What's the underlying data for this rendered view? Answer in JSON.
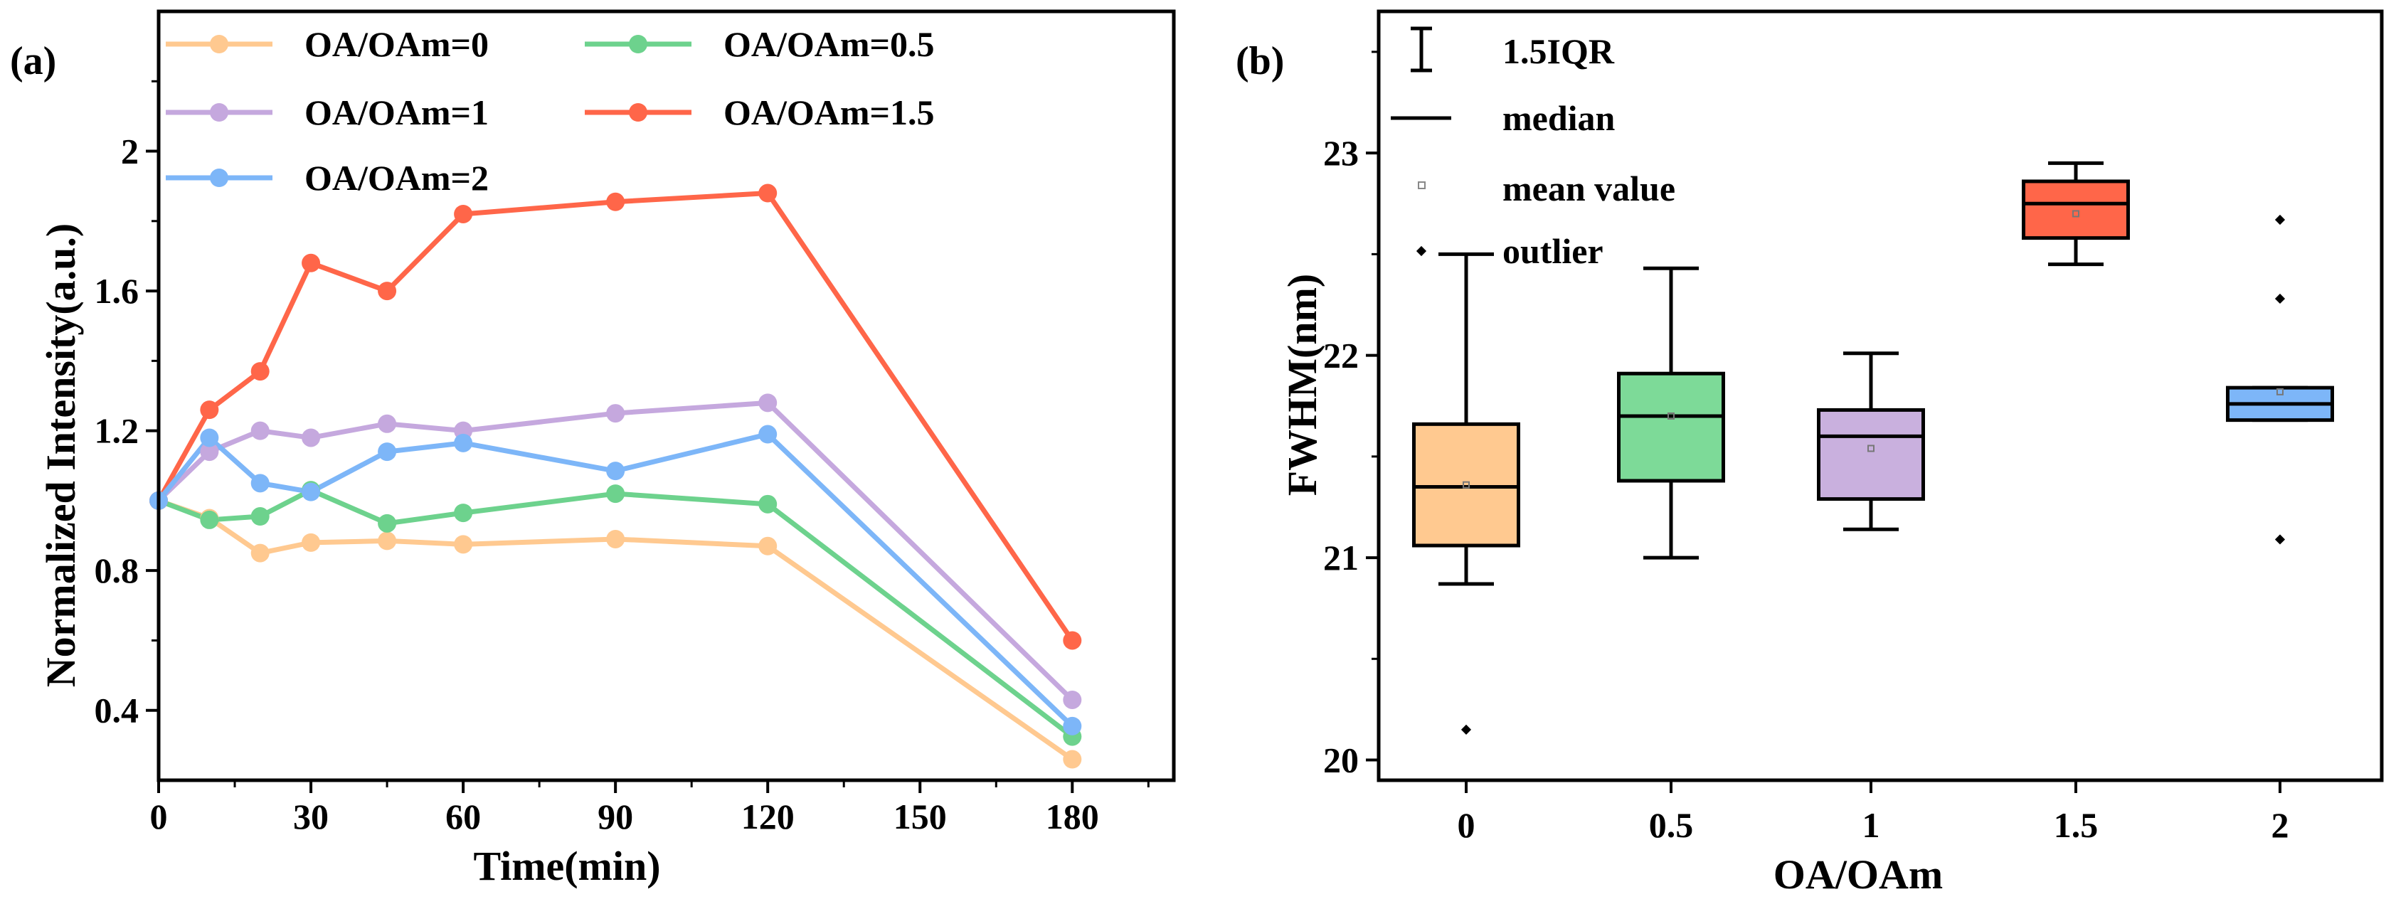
{
  "chart_data": [
    {
      "type": "line",
      "panel_label": "(a)",
      "xlabel": "Time(min)",
      "ylabel": "Normalized Intensity(a.u.)",
      "xlim": [
        0,
        200
      ],
      "ylim": [
        0.2,
        2.4
      ],
      "xticks": [
        0,
        30,
        60,
        90,
        120,
        150,
        180
      ],
      "yticks": [
        0.4,
        0.8,
        1.2,
        1.6,
        2.0
      ],
      "x": [
        0,
        10,
        20,
        30,
        45,
        60,
        90,
        120,
        180
      ],
      "series": [
        {
          "name": "OA/OAm=0",
          "color": "#FFC990",
          "values": [
            1.0,
            0.95,
            0.85,
            0.88,
            0.885,
            0.875,
            0.89,
            0.87,
            0.26
          ]
        },
        {
          "name": "OA/OAm=0.5",
          "color": "#6DD28D",
          "values": [
            1.0,
            0.945,
            0.955,
            1.03,
            0.935,
            0.965,
            1.02,
            0.99,
            0.325
          ]
        },
        {
          "name": "OA/OAm=1",
          "color": "#C5A8DE",
          "values": [
            1.0,
            1.14,
            1.2,
            1.18,
            1.22,
            1.2,
            1.25,
            1.28,
            0.43
          ]
        },
        {
          "name": "OA/OAm=1.5",
          "color": "#FF6649",
          "values": [
            1.0,
            1.26,
            1.37,
            1.68,
            1.6,
            1.82,
            1.855,
            1.88,
            0.6
          ]
        },
        {
          "name": "OA/OAm=2",
          "color": "#7DB6F8",
          "values": [
            1.0,
            1.18,
            1.05,
            1.025,
            1.14,
            1.165,
            1.085,
            1.19,
            0.355
          ]
        }
      ]
    },
    {
      "type": "box",
      "panel_label": "(b)",
      "xlabel": "OA/OAm",
      "ylabel": "FWHM(nm)",
      "ylim": [
        19.9,
        23.7
      ],
      "yticks": [
        20,
        21,
        22,
        23
      ],
      "categories": [
        "0",
        "0.5",
        "1",
        "1.5",
        "2"
      ],
      "boxes": [
        {
          "name": "0",
          "color": "#FFC990",
          "whisker_low": 20.87,
          "q1": 21.06,
          "median": 21.35,
          "q3": 21.66,
          "whisker_high": 22.5,
          "mean": 21.36,
          "outliers": [
            20.15
          ]
        },
        {
          "name": "0.5",
          "color": "#7DDA98",
          "whisker_low": 21.0,
          "q1": 21.38,
          "median": 21.7,
          "q3": 21.91,
          "whisker_high": 22.43,
          "mean": 21.7,
          "outliers": []
        },
        {
          "name": "1",
          "color": "#C9B0DE",
          "whisker_low": 21.14,
          "q1": 21.29,
          "median": 21.6,
          "q3": 21.73,
          "whisker_high": 22.01,
          "mean": 21.54,
          "outliers": []
        },
        {
          "name": "1.5",
          "color": "#FF6649",
          "whisker_low": 22.45,
          "q1": 22.58,
          "median": 22.75,
          "q3": 22.86,
          "whisker_high": 22.95,
          "mean": 22.7,
          "outliers": []
        },
        {
          "name": "2",
          "color": "#7DB6F8",
          "whisker_low": 21.68,
          "q1": 21.68,
          "median": 21.76,
          "q3": 21.84,
          "whisker_high": 21.84,
          "mean": 21.82,
          "outliers": [
            22.67,
            22.28,
            21.09
          ]
        }
      ],
      "legend": [
        "1.5IQR",
        "median",
        "mean value",
        "outlier"
      ]
    }
  ]
}
